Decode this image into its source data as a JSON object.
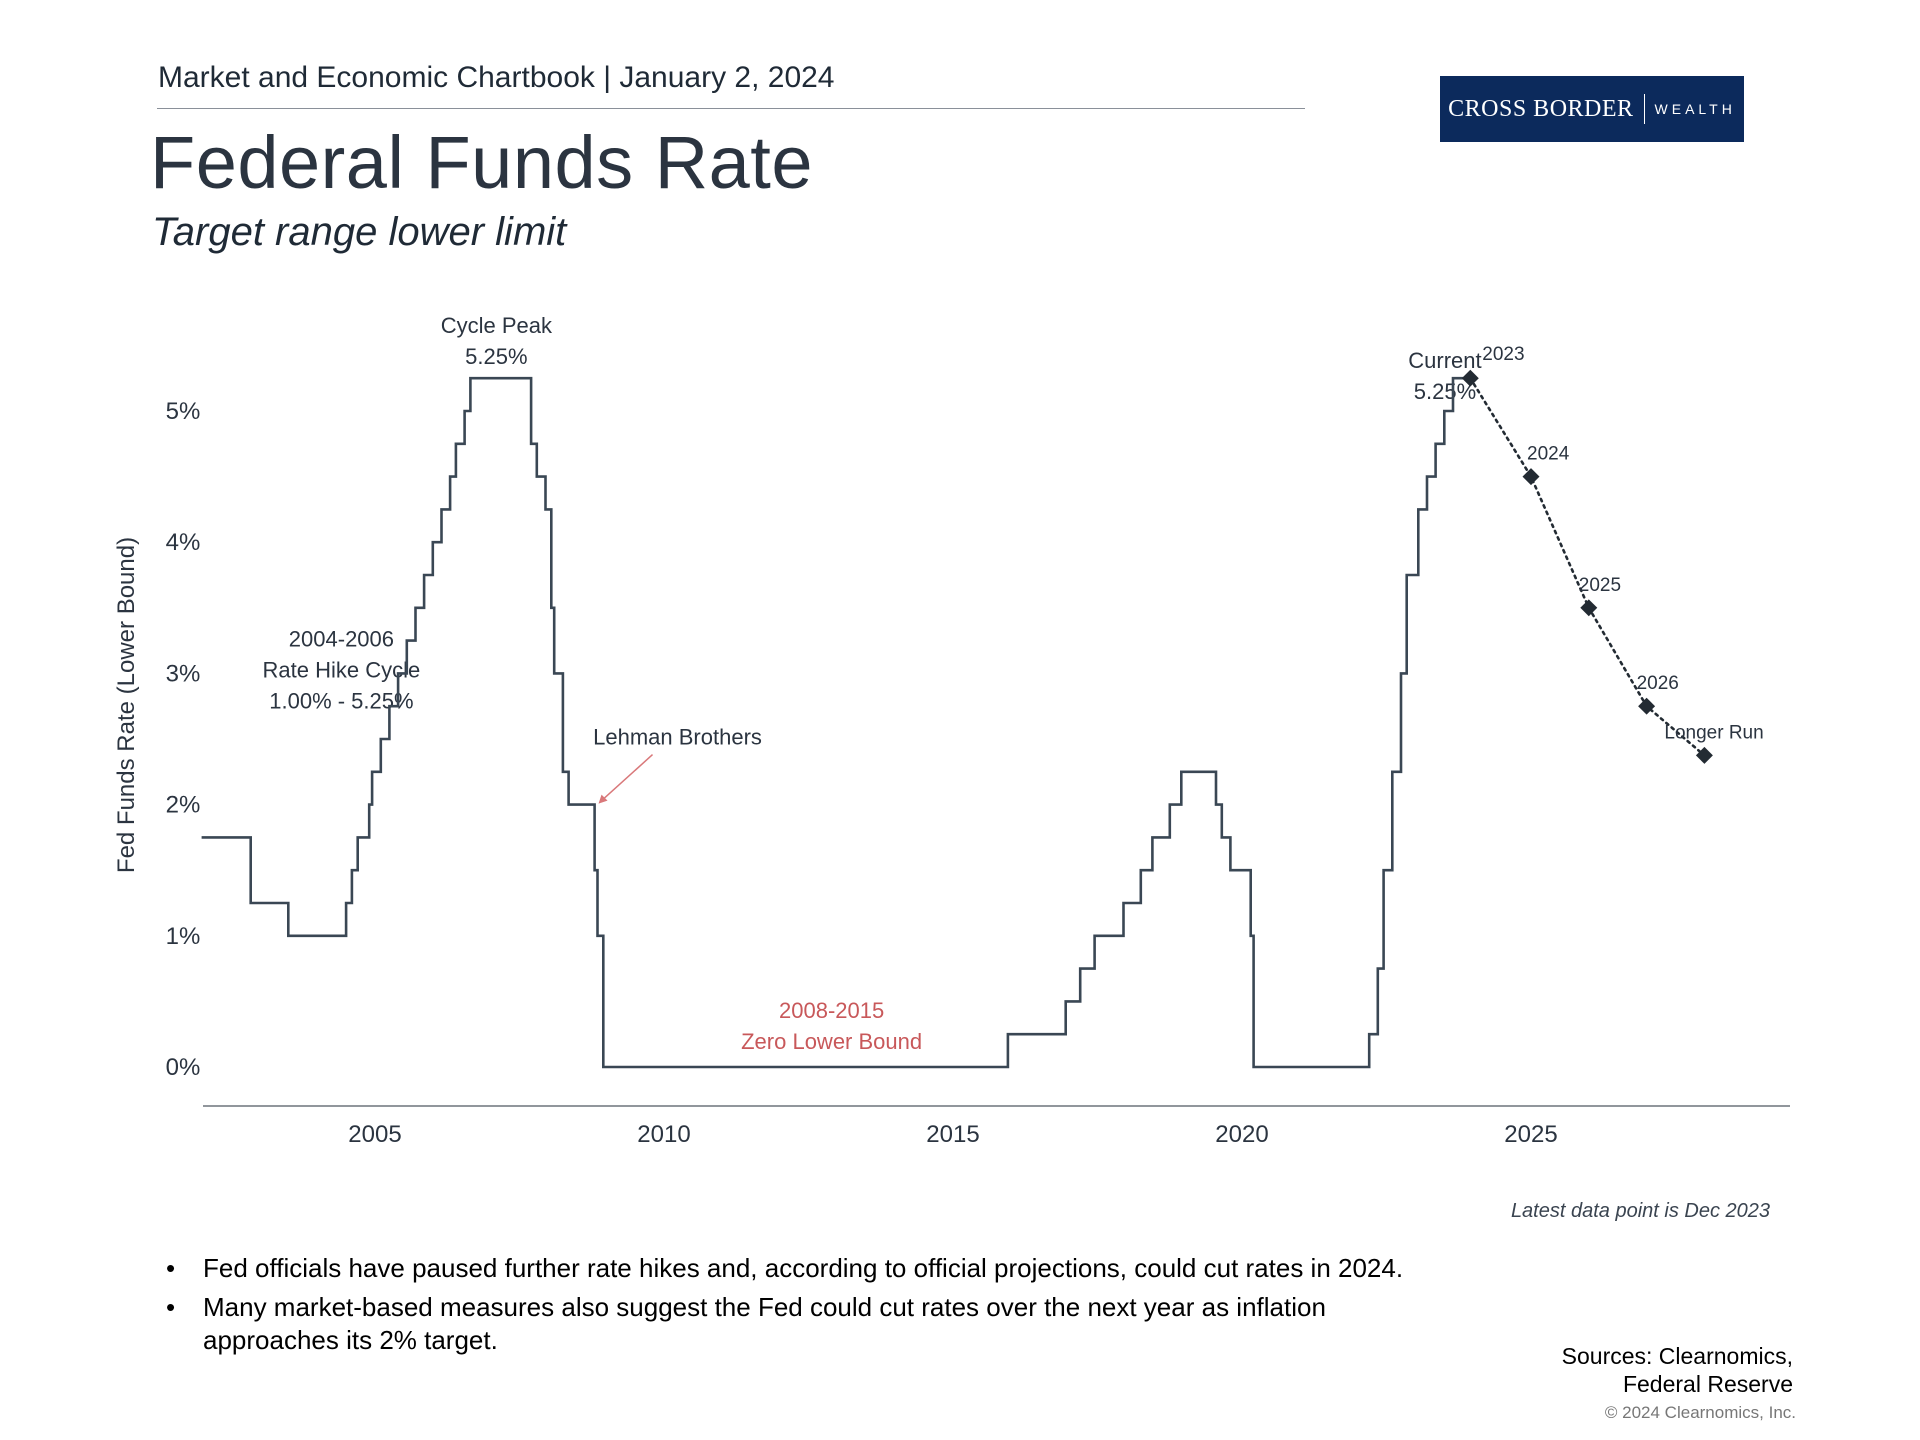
{
  "header": {
    "chartbook": "Market and Economic Chartbook | January 2, 2024",
    "title": "Federal Funds Rate",
    "subtitle": "Target range lower limit"
  },
  "logo": {
    "primary": "CROSS BORDER",
    "secondary": "WEALTH",
    "color": "#0c2a5c"
  },
  "chart_data": {
    "type": "line",
    "title": "Federal Funds Rate",
    "subtitle": "Target range lower limit",
    "xlabel": "",
    "ylabel": "Fed Funds Rate (Lower Bound)",
    "xlim": [
      2002.0,
      2029.5
    ],
    "ylim": [
      0,
      5.5
    ],
    "x_ticks": [
      2005,
      2010,
      2015,
      2020,
      2025
    ],
    "x_tick_labels": [
      "2005",
      "2010",
      "2015",
      "2020",
      "2025"
    ],
    "y_ticks": [
      0,
      1,
      2,
      3,
      4,
      5
    ],
    "y_tick_labels": [
      "0%",
      "1%",
      "2%",
      "3%",
      "4%",
      "5%"
    ],
    "grid": false,
    "series": [
      {
        "name": "Fed Funds Rate (Lower Bound)",
        "style": "step",
        "color": "#3a4754",
        "points": [
          [
            2002.0,
            1.75
          ],
          [
            2002.85,
            1.25
          ],
          [
            2003.5,
            1.0
          ],
          [
            2004.5,
            1.25
          ],
          [
            2004.6,
            1.5
          ],
          [
            2004.7,
            1.75
          ],
          [
            2004.9,
            2.0
          ],
          [
            2004.95,
            2.25
          ],
          [
            2005.1,
            2.5
          ],
          [
            2005.25,
            2.75
          ],
          [
            2005.4,
            3.0
          ],
          [
            2005.55,
            3.25
          ],
          [
            2005.7,
            3.5
          ],
          [
            2005.85,
            3.75
          ],
          [
            2006.0,
            4.0
          ],
          [
            2006.15,
            4.25
          ],
          [
            2006.3,
            4.5
          ],
          [
            2006.4,
            4.75
          ],
          [
            2006.55,
            5.0
          ],
          [
            2006.65,
            5.25
          ],
          [
            2007.7,
            4.75
          ],
          [
            2007.8,
            4.5
          ],
          [
            2007.95,
            4.25
          ],
          [
            2008.05,
            3.5
          ],
          [
            2008.1,
            3.0
          ],
          [
            2008.25,
            2.25
          ],
          [
            2008.35,
            2.0
          ],
          [
            2008.8,
            1.5
          ],
          [
            2008.85,
            1.0
          ],
          [
            2008.95,
            0.0
          ],
          [
            2015.95,
            0.25
          ],
          [
            2016.95,
            0.5
          ],
          [
            2017.2,
            0.75
          ],
          [
            2017.45,
            1.0
          ],
          [
            2017.95,
            1.25
          ],
          [
            2018.25,
            1.5
          ],
          [
            2018.45,
            1.75
          ],
          [
            2018.75,
            2.0
          ],
          [
            2018.95,
            2.25
          ],
          [
            2019.55,
            2.0
          ],
          [
            2019.65,
            1.75
          ],
          [
            2019.8,
            1.5
          ],
          [
            2020.15,
            1.0
          ],
          [
            2020.2,
            0.0
          ],
          [
            2022.2,
            0.25
          ],
          [
            2022.35,
            0.75
          ],
          [
            2022.45,
            1.5
          ],
          [
            2022.6,
            2.25
          ],
          [
            2022.75,
            3.0
          ],
          [
            2022.85,
            3.75
          ],
          [
            2023.05,
            4.25
          ],
          [
            2023.2,
            4.5
          ],
          [
            2023.35,
            4.75
          ],
          [
            2023.5,
            5.0
          ],
          [
            2023.65,
            5.25
          ],
          [
            2023.95,
            5.25
          ]
        ]
      },
      {
        "name": "Projections",
        "style": "dotted",
        "color": "#232b33",
        "points": [
          [
            2023.95,
            5.25
          ],
          [
            2025.0,
            4.5
          ],
          [
            2026.0,
            3.5
          ],
          [
            2027.0,
            2.75
          ],
          [
            2028.0,
            2.375
          ]
        ],
        "labels": [
          "2023",
          "2024",
          "2025",
          "2026",
          "Longer Run"
        ]
      }
    ],
    "annotations": [
      {
        "lines": [
          "Cycle Peak",
          "5.25%"
        ],
        "x": 2007.1,
        "y": 5.25,
        "color": "#2b3440"
      },
      {
        "lines": [
          "Current",
          "5.25%"
        ],
        "x": 2023.65,
        "y": 5.25,
        "color": "#2b3440"
      },
      {
        "lines": [
          "2004-2006",
          "Rate Hike Cycle",
          "1.00% - 5.25%"
        ],
        "x": 2003.9,
        "y": 3.0,
        "color": "#2b3440"
      },
      {
        "lines": [
          "Lehman Brothers"
        ],
        "x": 2008.85,
        "y": 2.0,
        "color": "#2b3440",
        "arrow_color": "#d9787a"
      },
      {
        "lines": [
          "2008-2015",
          "Zero Lower Bound"
        ],
        "x": 2012.9,
        "y": 0.0,
        "color": "#c8585a"
      }
    ],
    "footnote": "Latest data point is Dec 2023"
  },
  "bullets": [
    "Fed officials have paused further rate hikes and, according to official projections, could cut rates in 2024.",
    "Many market-based measures also suggest the Fed could cut rates over the next year as inflation approaches its 2% target."
  ],
  "bullet_symbol": "•",
  "sources": {
    "line1": "Sources: Clearnomics,",
    "line2": "Federal Reserve"
  },
  "copyright": "© 2024 Clearnomics, Inc."
}
